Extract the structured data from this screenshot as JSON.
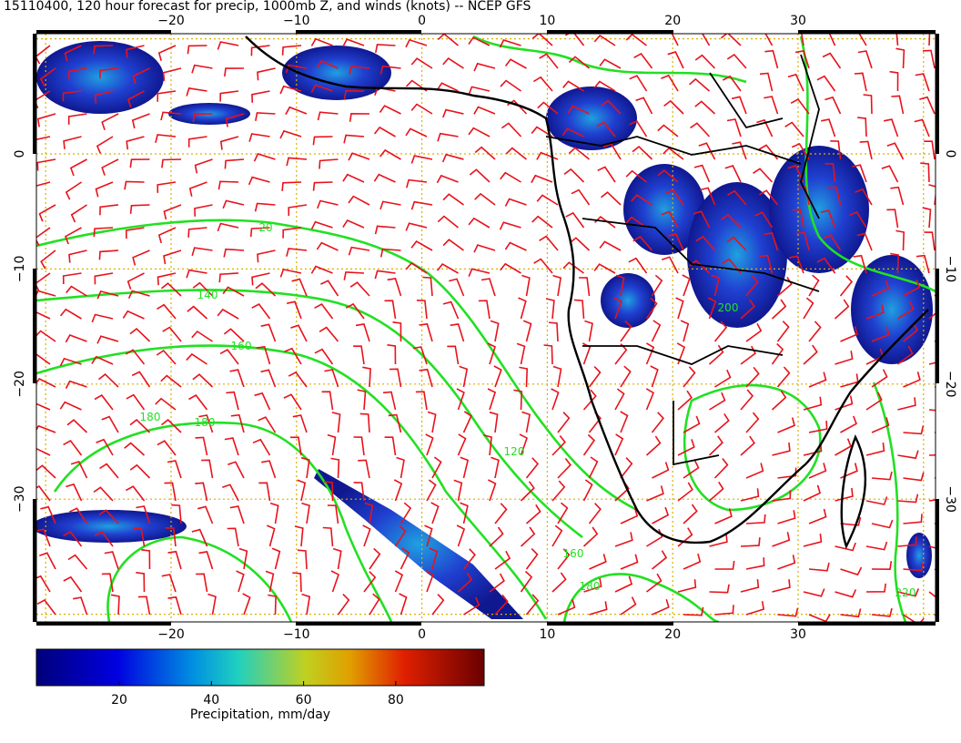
{
  "header": {
    "title": "15110400, 120 hour forecast for precip, 1000mb Z, and winds (knots) -- NCEP GFS"
  },
  "map": {
    "lon_labels": [
      "−20",
      "−10",
      "0",
      "10",
      "20",
      "30"
    ],
    "lat_labels": [
      "0",
      "−10",
      "−20",
      "−30"
    ],
    "contour_labels": [
      "20",
      "140",
      "160",
      "180",
      "180",
      "120",
      "160",
      "180",
      "200",
      "220"
    ]
  },
  "colorbar": {
    "ticks": [
      "20",
      "40",
      "60",
      "80"
    ],
    "label": "Precipitation, mm/day"
  }
}
